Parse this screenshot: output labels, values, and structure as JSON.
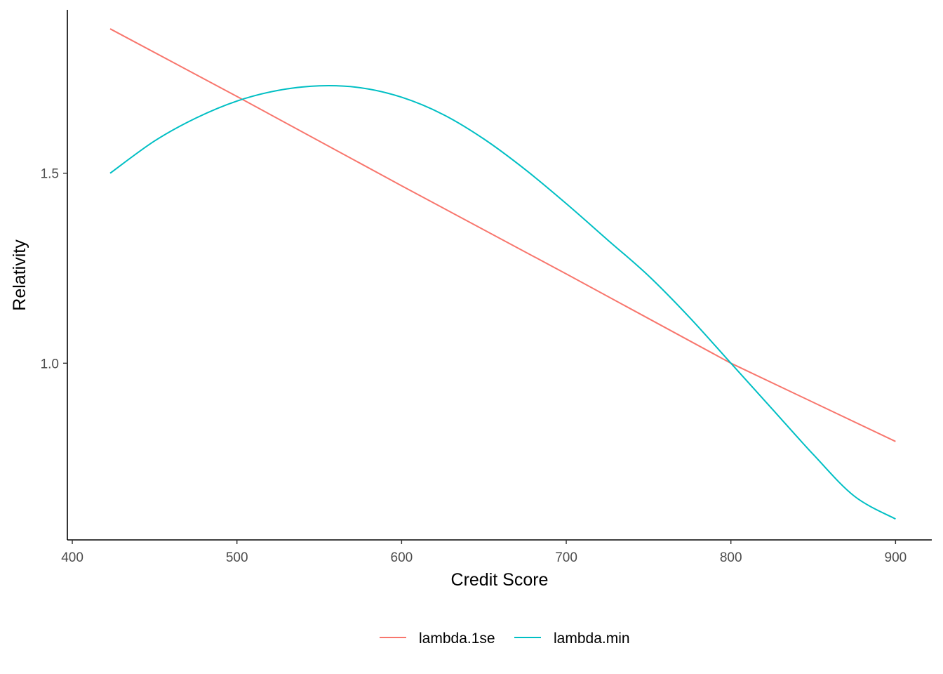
{
  "chart_data": {
    "type": "line",
    "title": "",
    "xlabel": "Credit Score",
    "ylabel": "Relativity",
    "xlim": [
      397,
      922
    ],
    "ylim": [
      0.535,
      1.93
    ],
    "x_ticks": [
      400,
      500,
      600,
      700,
      800,
      900
    ],
    "y_ticks": [
      1.0,
      1.5
    ],
    "grid": false,
    "legend_position": "bottom",
    "series": [
      {
        "name": "lambda.1se",
        "color": "#F8766D",
        "x": [
          423,
          500,
          600,
          700,
          800,
          900
        ],
        "y": [
          1.88,
          1.702,
          1.467,
          1.235,
          1.0,
          0.794
        ]
      },
      {
        "name": "lambda.min",
        "color": "#00BFC4",
        "x": [
          423,
          450,
          475,
          500,
          525,
          550,
          575,
          600,
          625,
          650,
          675,
          700,
          725,
          750,
          775,
          800,
          825,
          850,
          875,
          900
        ],
        "y": [
          1.5,
          1.585,
          1.645,
          1.69,
          1.718,
          1.73,
          1.725,
          1.7,
          1.655,
          1.59,
          1.51,
          1.42,
          1.325,
          1.23,
          1.12,
          1.0,
          0.88,
          0.76,
          0.65,
          0.59
        ]
      }
    ]
  }
}
